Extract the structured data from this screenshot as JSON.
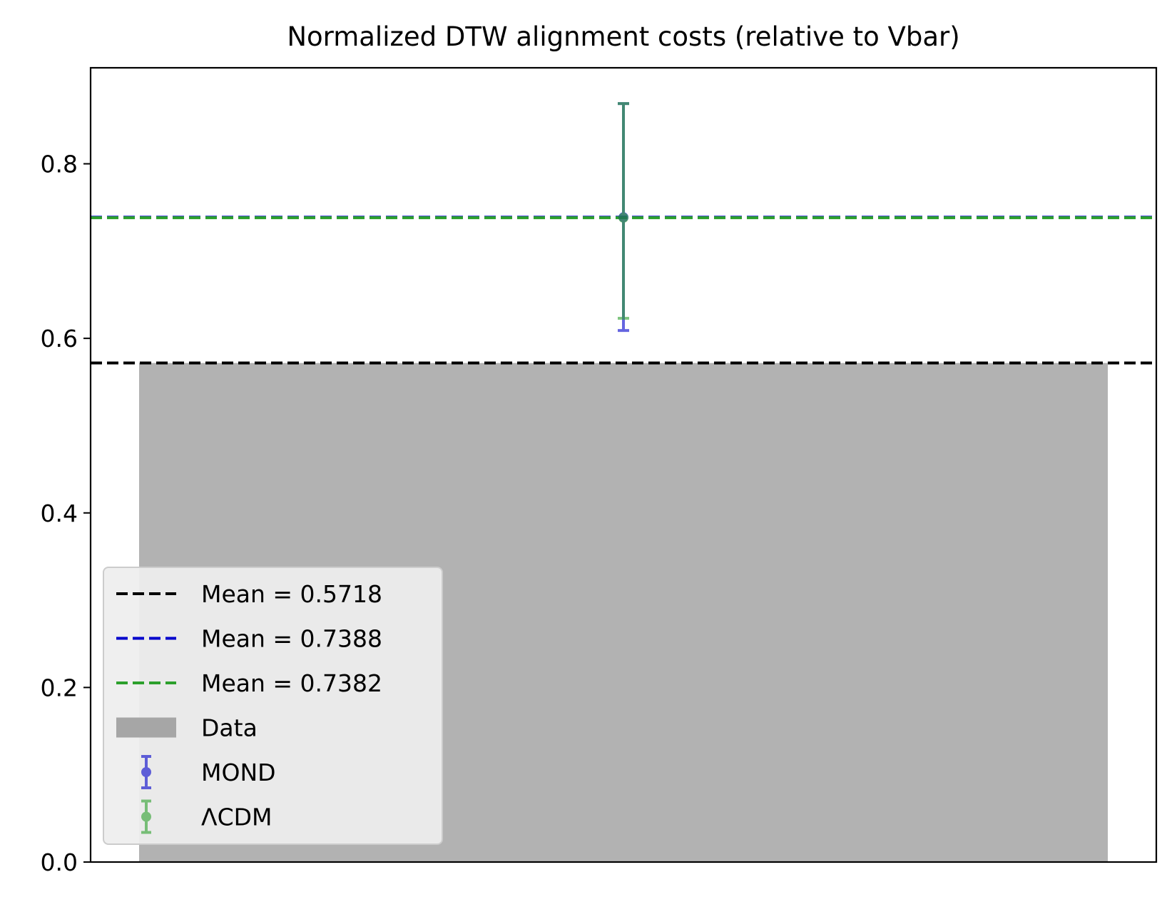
{
  "chart_data": {
    "type": "bar",
    "title": "Normalized DTW alignment costs (relative to Vbar)",
    "xlabel": "",
    "ylabel": "",
    "ylim": [
      0,
      0.91
    ],
    "yticks": [
      {
        "value": 0.0,
        "label": "0.0"
      },
      {
        "value": 0.2,
        "label": "0.2"
      },
      {
        "value": 0.4,
        "label": "0.4"
      },
      {
        "value": 0.6,
        "label": "0.6"
      },
      {
        "value": 0.8,
        "label": "0.8"
      }
    ],
    "grid": false,
    "legend_position": "lower-left",
    "bar": {
      "name": "Data",
      "value": 0.5718,
      "color": "#b2b2b2"
    },
    "points": [
      {
        "name": "MOND",
        "value": 0.7388,
        "err_low": 0.609,
        "err_high": 0.869,
        "color": "#0000cc"
      },
      {
        "name": "ΛCDM",
        "value": 0.7382,
        "err_low": 0.623,
        "err_high": 0.869,
        "color": "#2ca02c"
      }
    ],
    "mean_lines": [
      {
        "value": 0.5718,
        "label": "Mean = 0.5718",
        "color": "#000000"
      },
      {
        "value": 0.7388,
        "label": "Mean = 0.7388",
        "color": "#0000cc"
      },
      {
        "value": 0.7382,
        "label": "Mean = 0.7382",
        "color": "#2ca02c"
      }
    ],
    "legend": [
      {
        "label": "Mean = 0.5718",
        "kind": "dashed-line",
        "color": "#000000"
      },
      {
        "label": "Mean = 0.7388",
        "kind": "dashed-line",
        "color": "#0000cc"
      },
      {
        "label": "Mean = 0.7382",
        "kind": "dashed-line",
        "color": "#2ca02c"
      },
      {
        "label": "Data",
        "kind": "patch",
        "color": "#a6a6a6"
      },
      {
        "label": "MOND",
        "kind": "errorbar",
        "color": "#0000cc"
      },
      {
        "label": "ΛCDM",
        "kind": "errorbar",
        "color": "#2ca02c"
      }
    ]
  }
}
